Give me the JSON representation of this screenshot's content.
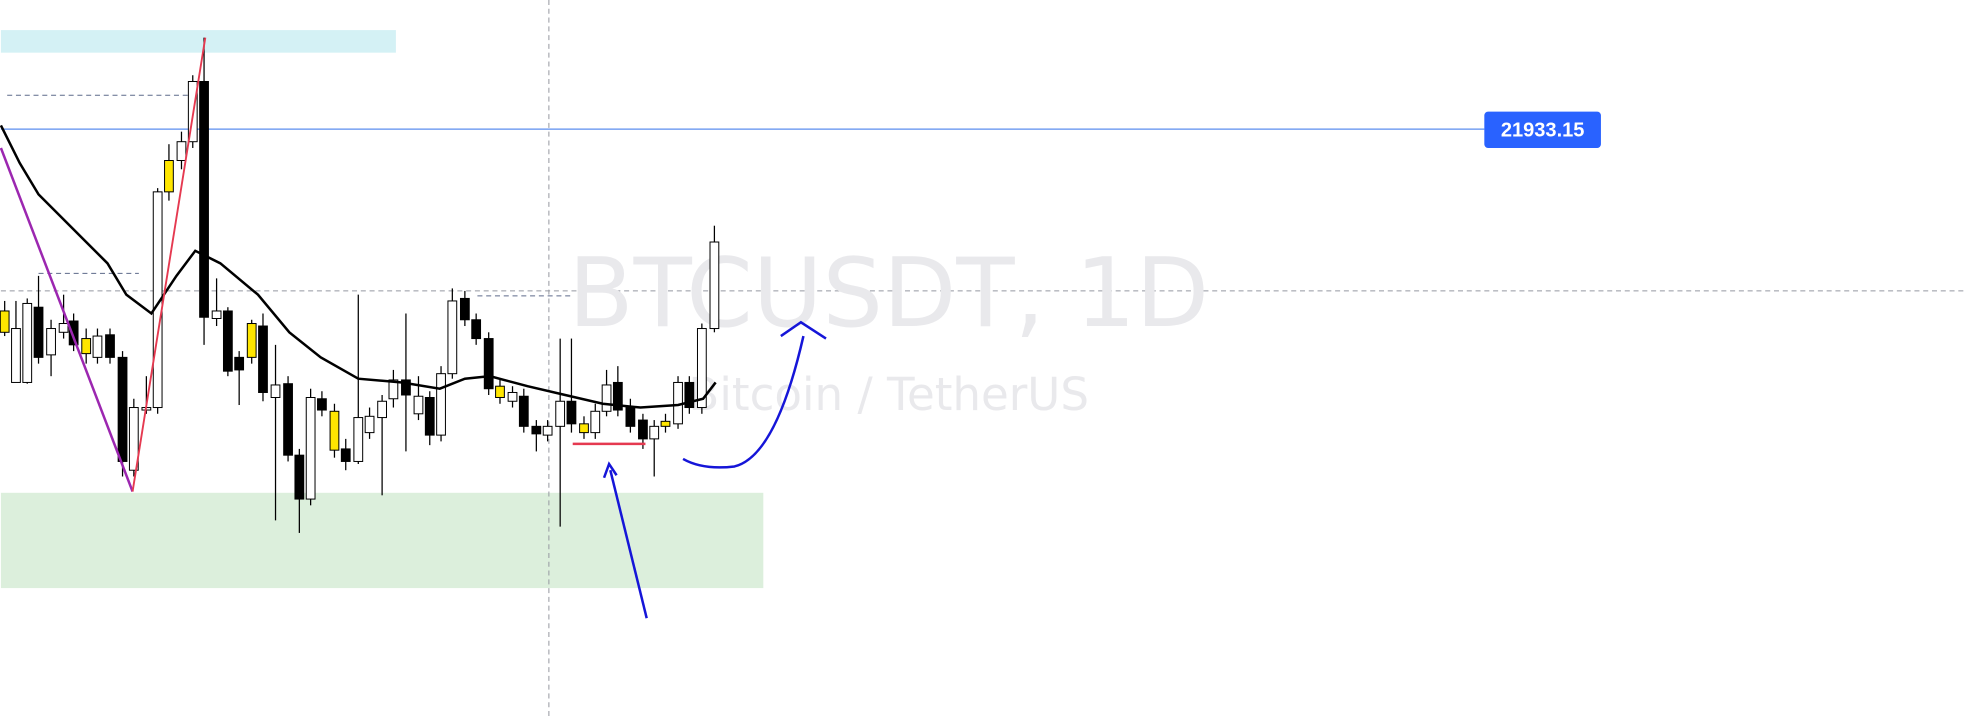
{
  "watermark": {
    "title": "BTCUSDT, 1D",
    "subtitle": "Bitcoin / TetherUS"
  },
  "price_line": {
    "label": "21933.15"
  }
}
